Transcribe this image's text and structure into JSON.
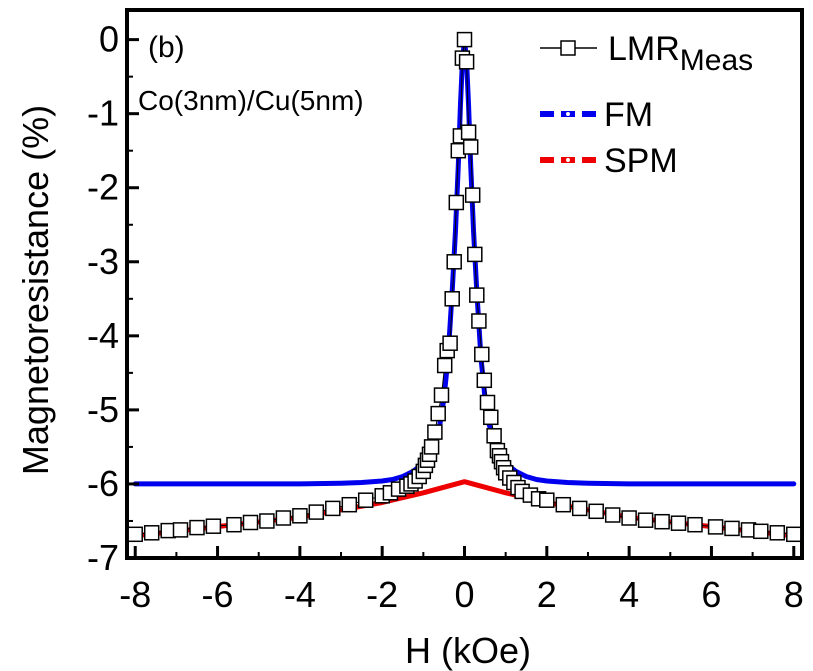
{
  "chart_data": {
    "type": "line",
    "panel_label": "(b)",
    "annotation": "Co(3nm)/Cu(5nm)",
    "xlabel": "H (kOe)",
    "ylabel": "Magnetoresistance (%)",
    "xlim": [
      -8.2,
      8.2
    ],
    "ylim": [
      -7,
      0.4
    ],
    "xticks": [
      -8,
      -6,
      -4,
      -2,
      0,
      2,
      4,
      6,
      8
    ],
    "yticks": [
      0,
      -1,
      -2,
      -3,
      -4,
      -5,
      -6,
      -7
    ],
    "grid": false,
    "legend_position": "top-right",
    "legend": {
      "meas_main": "LMR",
      "meas_sub": "Meas",
      "fm": "FM",
      "spm": "SPM"
    },
    "colors": {
      "fm": "#0000ee",
      "spm": "#ee0000",
      "meas_marker": "#000000"
    },
    "series": [
      {
        "name": "LMR_Meas",
        "style": "open-square-markers",
        "x": [
          -8.0,
          -7.6,
          -7.2,
          -6.9,
          -6.5,
          -6.1,
          -5.6,
          -5.2,
          -4.8,
          -4.4,
          -4.0,
          -3.6,
          -3.2,
          -2.8,
          -2.4,
          -2.0,
          -1.8,
          -1.6,
          -1.4,
          -1.3,
          -1.2,
          -1.1,
          -1.0,
          -0.95,
          -0.9,
          -0.85,
          -0.8,
          -0.72,
          -0.64,
          -0.56,
          -0.48,
          -0.42,
          -0.35,
          -0.3,
          -0.25,
          -0.2,
          -0.15,
          -0.1,
          -0.05,
          0.0,
          0.05,
          0.1,
          0.15,
          0.2,
          0.25,
          0.3,
          0.35,
          0.42,
          0.48,
          0.56,
          0.64,
          0.72,
          0.8,
          0.85,
          0.9,
          0.95,
          1.0,
          1.1,
          1.2,
          1.3,
          1.4,
          1.6,
          1.8,
          2.0,
          2.4,
          2.8,
          3.2,
          3.6,
          4.0,
          4.4,
          4.8,
          5.2,
          5.6,
          6.1,
          6.5,
          6.9,
          7.2,
          7.6,
          8.0
        ],
        "y": [
          -6.68,
          -6.66,
          -6.63,
          -6.62,
          -6.59,
          -6.57,
          -6.55,
          -6.52,
          -6.5,
          -6.46,
          -6.43,
          -6.38,
          -6.33,
          -6.28,
          -6.22,
          -6.16,
          -6.12,
          -6.07,
          -6.03,
          -6.0,
          -5.96,
          -5.9,
          -5.83,
          -5.75,
          -5.68,
          -5.6,
          -5.5,
          -5.3,
          -5.05,
          -4.8,
          -4.4,
          -4.2,
          -4.1,
          -3.5,
          -3.0,
          -2.2,
          -1.5,
          -1.3,
          -0.25,
          0.0,
          -0.3,
          -1.25,
          -1.45,
          -2.1,
          -2.9,
          -3.45,
          -3.8,
          -4.25,
          -4.6,
          -4.9,
          -5.1,
          -5.35,
          -5.55,
          -5.62,
          -5.7,
          -5.78,
          -5.85,
          -5.92,
          -5.98,
          -6.05,
          -6.1,
          -6.15,
          -6.2,
          -6.22,
          -6.28,
          -6.33,
          -6.37,
          -6.42,
          -6.46,
          -6.49,
          -6.51,
          -6.53,
          -6.55,
          -6.58,
          -6.6,
          -6.62,
          -6.64,
          -6.66,
          -6.68
        ]
      },
      {
        "name": "FM",
        "style": "thick-line",
        "x": [
          -8.0,
          -6.0,
          -4.0,
          -3.0,
          -2.5,
          -2.0,
          -1.75,
          -1.5,
          -1.25,
          -1.0,
          -0.8,
          -0.6,
          -0.5,
          -0.4,
          -0.3,
          -0.22,
          -0.15,
          -0.1,
          -0.05,
          0.0,
          0.05,
          0.1,
          0.15,
          0.22,
          0.3,
          0.4,
          0.5,
          0.6,
          0.8,
          1.0,
          1.25,
          1.5,
          1.75,
          2.0,
          2.5,
          3.0,
          4.0,
          6.0,
          8.0
        ],
        "y": [
          -6.0,
          -6.0,
          -6.0,
          -5.99,
          -5.98,
          -5.96,
          -5.94,
          -5.9,
          -5.83,
          -5.72,
          -5.55,
          -5.2,
          -4.85,
          -4.3,
          -3.4,
          -2.6,
          -1.7,
          -0.9,
          -0.3,
          0.0,
          -0.3,
          -0.9,
          -1.7,
          -2.6,
          -3.4,
          -4.3,
          -4.85,
          -5.2,
          -5.55,
          -5.72,
          -5.83,
          -5.9,
          -5.94,
          -5.96,
          -5.98,
          -5.99,
          -6.0,
          -6.0,
          -6.0
        ]
      },
      {
        "name": "SPM",
        "style": "thick-line",
        "x": [
          -8.0,
          -4.0,
          -2.0,
          -1.0,
          0.0,
          1.0,
          2.0,
          4.0,
          8.0
        ],
        "y": [
          -6.7,
          -6.45,
          -6.25,
          -6.12,
          -5.97,
          -6.12,
          -6.25,
          -6.45,
          -6.7
        ]
      }
    ]
  }
}
